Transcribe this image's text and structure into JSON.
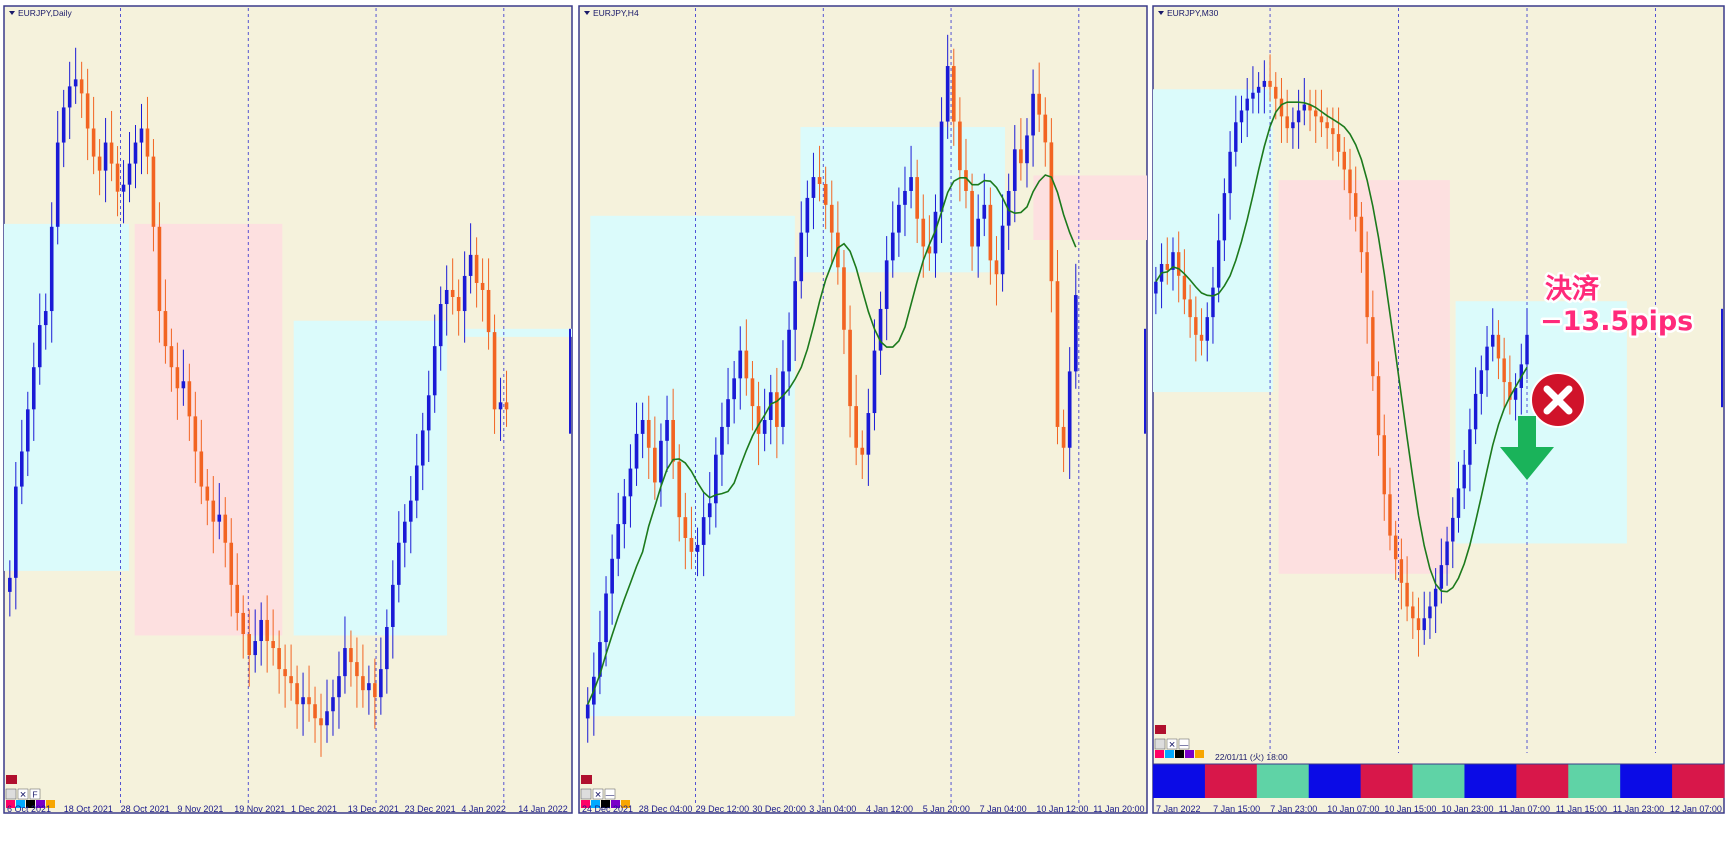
{
  "colors": {
    "background": "#f5f2dc",
    "bull": "#1a1ad6",
    "bear": "#f26422",
    "ma": "#1c7a1c",
    "zone_blue": "#dbfbfb",
    "zone_pink": "#fde0e0",
    "grid": "#2c2ccf",
    "annotation": "#ff2a7a",
    "close_icon": "#d0132a",
    "arrow": "#1ab35a"
  },
  "panels": [
    {
      "title": "EURJPY,Daily",
      "x_labels": [
        "6 Oct 2021",
        "18 Oct 2021",
        "28 Oct 2021",
        "9 Nov 2021",
        "19 Nov 2021",
        "1 Dec 2021",
        "13 Dec 2021",
        "23 Dec 2021",
        "4 Jan 2022",
        "14 Jan 2022"
      ],
      "toolbar": [
        "✕",
        "F"
      ]
    },
    {
      "title": "EURJPY,H4",
      "x_labels": [
        "24 Dec 2021",
        "28 Dec 04:00",
        "29 Dec 12:00",
        "30 Dec 20:00",
        "3 Jan 04:00",
        "4 Jan 12:00",
        "5 Jan 20:00",
        "7 Jan 04:00",
        "10 Jan 12:00",
        "11 Jan 20:00"
      ],
      "toolbar": [
        "✕",
        "—"
      ]
    },
    {
      "title": "EURJPY,M30",
      "x_labels": [
        "7 Jan 2022",
        "7 Jan 15:00",
        "7 Jan 23:00",
        "10 Jan 07:00",
        "10 Jan 15:00",
        "10 Jan 23:00",
        "11 Jan 07:00",
        "11 Jan 15:00",
        "11 Jan 23:00",
        "12 Jan 07:00"
      ],
      "toolbar": [
        "✕",
        "—"
      ],
      "indicator_label": "22/01/11 (火) 18:00",
      "indicator_colors": [
        "#0b0be6",
        "#d8174a",
        "#5fd3a6",
        "#0b0be6",
        "#d8174a",
        "#5fd3a6",
        "#0b0be6",
        "#d8174a",
        "#5fd3a6",
        "#0b0be6",
        "#d8174a"
      ]
    }
  ],
  "annotation": {
    "line1": "決済",
    "line2": "−13.5pips"
  },
  "chart_data": [
    {
      "type": "candlestick",
      "title": "EURJPY,Daily",
      "ylim": [
        0,
        100
      ],
      "closes": [
        22,
        35,
        40,
        46,
        52,
        58,
        60,
        72,
        84,
        89,
        92,
        93,
        91,
        86,
        82,
        80,
        84,
        81,
        77,
        78,
        81,
        84,
        86,
        82,
        72,
        60,
        55,
        52,
        49,
        50,
        45,
        40,
        35,
        33,
        30,
        31,
        27,
        21,
        17,
        14,
        11,
        13,
        16,
        13,
        12,
        9,
        8,
        7,
        4,
        5,
        4,
        2,
        1,
        3,
        5,
        8,
        12,
        10,
        8,
        6,
        7,
        5,
        9,
        15,
        21,
        27,
        30,
        33,
        38,
        43,
        48,
        55,
        61,
        63,
        62,
        60,
        65,
        68,
        64,
        63,
        57,
        46,
        47,
        46
      ]
    },
    {
      "type": "candlestick",
      "title": "EURJPY,H4",
      "ylim": [
        0,
        100
      ],
      "closes": [
        4,
        8,
        13,
        20,
        25,
        30,
        34,
        38,
        43,
        45,
        41,
        36,
        42,
        45,
        39,
        31,
        28,
        26,
        27,
        31,
        33,
        40,
        44,
        48,
        51,
        55,
        51,
        47,
        43,
        45,
        49,
        44,
        52,
        58,
        65,
        72,
        77,
        80,
        79,
        76,
        72,
        67,
        58,
        47,
        41,
        40,
        46,
        55,
        61,
        68,
        72,
        76,
        78,
        80,
        74,
        70,
        69,
        75,
        88,
        96,
        88,
        81,
        78,
        70,
        74,
        76,
        68,
        66,
        73,
        78,
        84,
        82,
        86,
        92,
        89,
        85,
        65,
        44,
        41,
        52,
        63
      ]
    },
    {
      "type": "candlestick",
      "title": "EURJPY,M30",
      "ylim": [
        0,
        100
      ],
      "closes": [
        61,
        64,
        63,
        66,
        62,
        58,
        55,
        52,
        51,
        55,
        60,
        68,
        76,
        83,
        88,
        90,
        92,
        93,
        94,
        95,
        94,
        92,
        89,
        87,
        88,
        90,
        91,
        90,
        89,
        88,
        87,
        86,
        83,
        80,
        76,
        72,
        66,
        55,
        45,
        35,
        25,
        18,
        14,
        10,
        6,
        4,
        2,
        4,
        6,
        9,
        13,
        17,
        21,
        26,
        30,
        36,
        42,
        46,
        50,
        52,
        48,
        44,
        41,
        43,
        47,
        52
      ]
    }
  ]
}
